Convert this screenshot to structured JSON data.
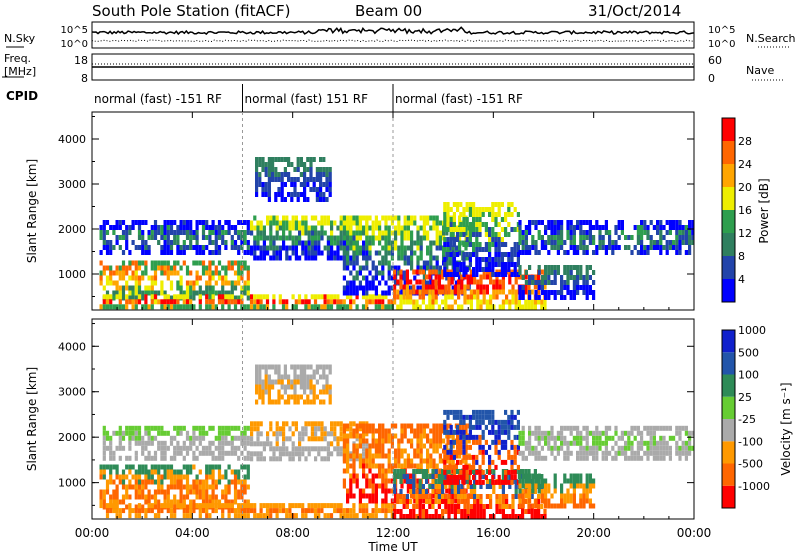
{
  "header": {
    "station": "South Pole Station (fitACF)",
    "beam": "Beam 00",
    "date": "31/Oct/2014"
  },
  "noise_panel": {
    "left_label": "N.Sky",
    "right_label": "N.Search",
    "left_ticks": [
      "10^5",
      "10^0"
    ],
    "right_ticks": [
      "10^5",
      "10^0"
    ]
  },
  "freq_panel": {
    "left_label_1": "Freq.",
    "left_label_2": "[MHz]",
    "right_label": "Nave",
    "left_ticks": [
      "18",
      "8"
    ],
    "right_ticks": [
      "60",
      "0"
    ]
  },
  "cpid": {
    "label": "CPID",
    "segments": [
      {
        "start_hour": 0,
        "end_hour": 6,
        "text": "normal (fast) -151 RF"
      },
      {
        "start_hour": 6,
        "end_hour": 12,
        "text": "normal (fast) 151 RF"
      },
      {
        "start_hour": 12,
        "end_hour": 24,
        "text": "normal (fast) -151 RF"
      }
    ]
  },
  "time_axis": {
    "label": "Time UT",
    "ticks": [
      "00:00",
      "04:00",
      "08:00",
      "12:00",
      "16:00",
      "20:00",
      "00:00"
    ]
  },
  "colors": {
    "power": [
      "#0000ff",
      "#2244aa",
      "#2f7f5f",
      "#2e9e4e",
      "#eeee00",
      "#ffa500",
      "#ff6600",
      "#ff0000"
    ],
    "velocity": [
      "#ff0000",
      "#ff6600",
      "#ff9900",
      "#aaaaaa",
      "#66cc33",
      "#2e8b57",
      "#2255aa",
      "#1020cc"
    ]
  },
  "chart_data": [
    {
      "type": "heatmap",
      "name": "power",
      "ylabel": "Slant Range [km]",
      "yticks": [
        "1000",
        "2000",
        "3000",
        "4000"
      ],
      "ylim": [
        200,
        4600
      ],
      "xlim": [
        0,
        24
      ],
      "colorbar": {
        "label": "Power [dB]",
        "ticks": [
          "4",
          "8",
          "12",
          "16",
          "20",
          "24",
          "28"
        ]
      },
      "regions": [
        {
          "t0": 0.3,
          "t1": 6.2,
          "r0": 1500,
          "r1": 2200,
          "c": [
            0,
            1,
            2,
            3,
            1,
            0
          ]
        },
        {
          "t0": 0.3,
          "t1": 6.2,
          "r0": 500,
          "r1": 1300,
          "c": [
            2,
            3,
            4,
            5,
            6,
            3
          ]
        },
        {
          "t0": 0.3,
          "t1": 12.0,
          "r0": 300,
          "r1": 550,
          "c": [
            3,
            5,
            6,
            7,
            4
          ]
        },
        {
          "t0": 6.3,
          "t1": 11.0,
          "r0": 1400,
          "r1": 2300,
          "c": [
            0,
            1,
            2,
            3,
            4
          ]
        },
        {
          "t0": 6.5,
          "t1": 9.5,
          "r0": 2600,
          "r1": 3600,
          "c": [
            0,
            1,
            2
          ]
        },
        {
          "t0": 10.0,
          "t1": 15.0,
          "r0": 600,
          "r1": 2300,
          "c": [
            0,
            1,
            2,
            3,
            4
          ]
        },
        {
          "t0": 12.0,
          "t1": 18.0,
          "r0": 300,
          "r1": 1100,
          "c": [
            4,
            5,
            6,
            7,
            6
          ]
        },
        {
          "t0": 14.0,
          "t1": 17.0,
          "r0": 1000,
          "r1": 2600,
          "c": [
            0,
            1,
            3,
            4
          ]
        },
        {
          "t0": 17.0,
          "t1": 23.9,
          "r0": 1500,
          "r1": 2200,
          "c": [
            0,
            1,
            2,
            3,
            1,
            0
          ]
        },
        {
          "t0": 17.0,
          "t1": 20.0,
          "r0": 500,
          "r1": 1200,
          "c": [
            0,
            1,
            2
          ]
        }
      ]
    },
    {
      "type": "heatmap",
      "name": "velocity",
      "ylabel": "Slant Range [km]",
      "yticks": [
        "1000",
        "2000",
        "3000",
        "4000"
      ],
      "ylim": [
        200,
        4600
      ],
      "xlim": [
        0,
        24
      ],
      "colorbar": {
        "label": "Velocity [m s⁻¹]",
        "ticks": [
          "-1000",
          "-500",
          "-100",
          "-25",
          "25",
          "100",
          "500",
          "1000"
        ]
      },
      "regions": [
        {
          "t0": 0.3,
          "t1": 6.2,
          "r0": 1500,
          "r1": 2250,
          "c": [
            3,
            3,
            3,
            4
          ]
        },
        {
          "t0": 0.3,
          "t1": 6.2,
          "r0": 500,
          "r1": 1400,
          "c": [
            1,
            2,
            1,
            2,
            5
          ]
        },
        {
          "t0": 0.3,
          "t1": 12.0,
          "r0": 300,
          "r1": 550,
          "c": [
            2,
            1,
            2
          ]
        },
        {
          "t0": 6.3,
          "t1": 11.0,
          "r0": 1500,
          "r1": 2350,
          "c": [
            3,
            3,
            2
          ]
        },
        {
          "t0": 6.5,
          "t1": 9.5,
          "r0": 2800,
          "r1": 3600,
          "c": [
            2,
            3
          ]
        },
        {
          "t0": 10.0,
          "t1": 15.0,
          "r0": 600,
          "r1": 2300,
          "c": [
            0,
            1,
            2,
            1
          ]
        },
        {
          "t0": 12.0,
          "t1": 18.0,
          "r0": 300,
          "r1": 1300,
          "c": [
            0,
            1,
            2,
            6,
            5
          ]
        },
        {
          "t0": 14.0,
          "t1": 17.0,
          "r0": 1000,
          "r1": 2600,
          "c": [
            0,
            1,
            7,
            6
          ]
        },
        {
          "t0": 17.0,
          "t1": 23.9,
          "r0": 1500,
          "r1": 2250,
          "c": [
            3,
            3,
            4,
            3
          ]
        },
        {
          "t0": 17.0,
          "t1": 20.0,
          "r0": 500,
          "r1": 1200,
          "c": [
            1,
            2,
            5
          ]
        }
      ]
    }
  ]
}
